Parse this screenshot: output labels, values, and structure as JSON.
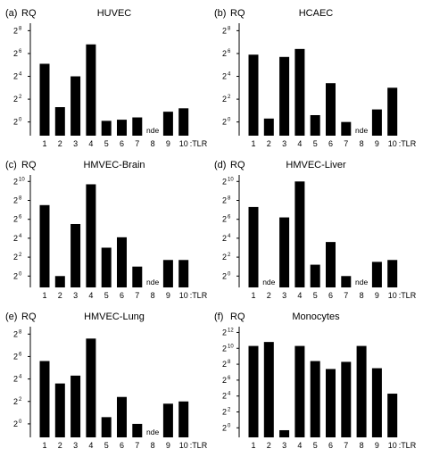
{
  "chart_data": [
    {
      "type": "bar",
      "panel_label": "(a)",
      "y_label": "RQ",
      "title": "HUVEC",
      "categories": [
        "1",
        "2",
        "3",
        "4",
        "5",
        "6",
        "7",
        "8",
        "9",
        "10"
      ],
      "x_suffix": ":TLR",
      "y_scale": "log2",
      "y_base": "2",
      "y_ticks": [
        0,
        2,
        4,
        6,
        8
      ],
      "ylim_log2": [
        -1.2,
        8.5
      ],
      "values_log2": [
        5.1,
        1.3,
        4.0,
        6.8,
        0.1,
        0.2,
        0.4,
        null,
        0.9,
        1.2
      ],
      "nde": [
        "8"
      ]
    },
    {
      "type": "bar",
      "panel_label": "(b)",
      "y_label": "RQ",
      "title": "HCAEC",
      "categories": [
        "1",
        "2",
        "3",
        "4",
        "5",
        "6",
        "7",
        "8",
        "9",
        "10"
      ],
      "x_suffix": ":TLR",
      "y_scale": "log2",
      "y_base": "2",
      "y_ticks": [
        0,
        2,
        4,
        6,
        8
      ],
      "ylim_log2": [
        -1.2,
        8.5
      ],
      "values_log2": [
        5.9,
        0.3,
        5.7,
        6.4,
        0.6,
        3.4,
        0.0,
        null,
        1.1,
        3.0
      ],
      "nde": [
        "8"
      ]
    },
    {
      "type": "bar",
      "panel_label": "(c)",
      "y_label": "RQ",
      "title": "HMVEC-Brain",
      "categories": [
        "1",
        "2",
        "3",
        "4",
        "5",
        "6",
        "7",
        "8",
        "9",
        "10"
      ],
      "x_suffix": ":TLR",
      "y_scale": "log2",
      "y_base": "2",
      "y_ticks": [
        0,
        2,
        4,
        6,
        8,
        10
      ],
      "ylim_log2": [
        -1.2,
        10.5
      ],
      "values_log2": [
        7.5,
        0.0,
        5.5,
        9.7,
        3.0,
        4.1,
        1.0,
        null,
        1.7,
        1.7
      ],
      "nde": [
        "8"
      ]
    },
    {
      "type": "bar",
      "panel_label": "(d)",
      "y_label": "RQ",
      "title": "HMVEC-Liver",
      "categories": [
        "1",
        "2",
        "3",
        "4",
        "5",
        "6",
        "7",
        "8",
        "9",
        "10"
      ],
      "x_suffix": ":TLR",
      "y_scale": "log2",
      "y_base": "2",
      "y_ticks": [
        0,
        2,
        4,
        6,
        8,
        10
      ],
      "ylim_log2": [
        -1.2,
        10.5
      ],
      "values_log2": [
        7.3,
        null,
        6.2,
        10.0,
        1.2,
        3.6,
        0.0,
        null,
        1.5,
        1.7
      ],
      "nde": [
        "2",
        "8"
      ]
    },
    {
      "type": "bar",
      "panel_label": "(e)",
      "y_label": "RQ",
      "title": "HMVEC-Lung",
      "categories": [
        "1",
        "2",
        "3",
        "4",
        "5",
        "6",
        "7",
        "8",
        "9",
        "10"
      ],
      "x_suffix": ":TLR",
      "y_scale": "log2",
      "y_base": "2",
      "y_ticks": [
        0,
        2,
        4,
        6,
        8
      ],
      "ylim_log2": [
        -1.2,
        8.5
      ],
      "values_log2": [
        5.6,
        3.6,
        4.3,
        7.6,
        0.6,
        2.4,
        0.0,
        null,
        1.8,
        2.0
      ],
      "nde": [
        "8"
      ]
    },
    {
      "type": "bar",
      "panel_label": "(f)",
      "y_label": "RQ",
      "title": "Monocytes",
      "categories": [
        "1",
        "2",
        "3",
        "4",
        "5",
        "6",
        "7",
        "8",
        "9",
        "10"
      ],
      "x_suffix": ":TLR",
      "y_scale": "log2",
      "y_base": "2",
      "y_ticks": [
        0,
        2,
        4,
        6,
        8,
        10,
        12
      ],
      "ylim_log2": [
        -1.2,
        12.5
      ],
      "values_log2": [
        10.3,
        10.8,
        -0.3,
        10.3,
        8.4,
        7.4,
        8.3,
        10.3,
        7.5,
        4.3
      ],
      "nde": []
    }
  ],
  "nde_label": "nde",
  "bar_color": "#000000"
}
